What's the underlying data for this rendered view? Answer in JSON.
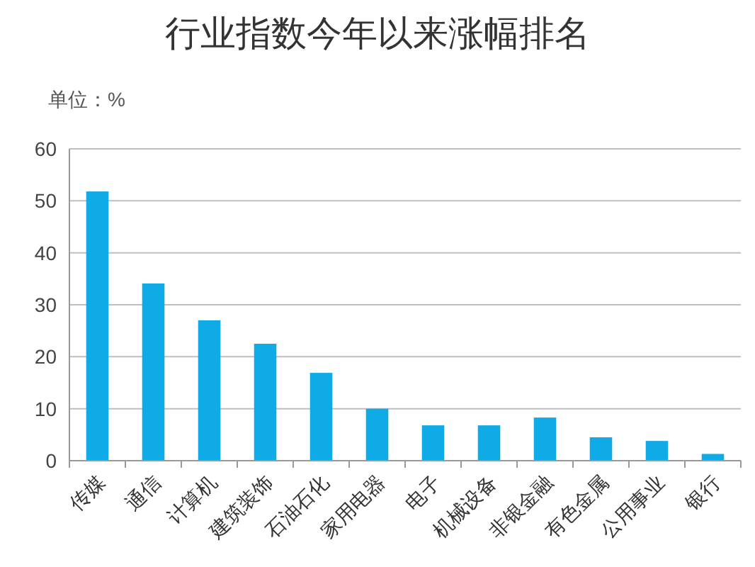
{
  "chart_data": {
    "type": "bar",
    "title": "行业指数今年以来涨幅排名",
    "subtitle": "单位：%",
    "categories": [
      "传媒",
      "通信",
      "计算机",
      "建筑装饰",
      "石油石化",
      "家用电器",
      "电子",
      "机械设备",
      "非银金融",
      "有色金属",
      "公用事业",
      "银行"
    ],
    "values": [
      51.8,
      34.1,
      27,
      22.5,
      16.9,
      10.0,
      6.8,
      6.8,
      8.3,
      4.5,
      3.8,
      1.3
    ],
    "color": "#0fabe6",
    "ylim": [
      0,
      60
    ],
    "yticks": [
      0,
      10,
      20,
      30,
      40,
      50,
      60
    ],
    "grid": "y"
  }
}
